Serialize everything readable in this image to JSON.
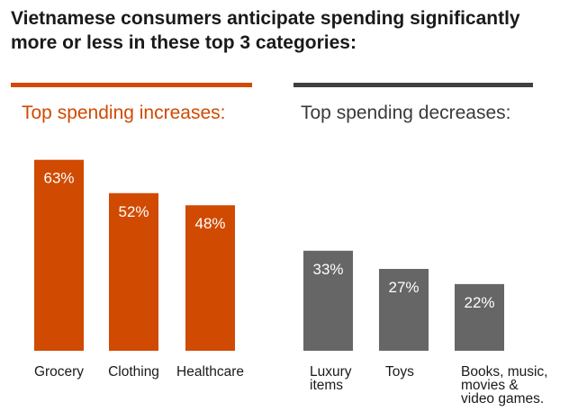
{
  "title": "Vietnamese consumers anticipate spending significantly more or less in these top 3 categories:",
  "colors": {
    "increase": "#d04a02",
    "decrease": "#666666",
    "rule_right": "#404040"
  },
  "chart_data": [
    {
      "type": "bar",
      "title": "Top spending increases:",
      "categories": [
        "Grocery",
        "Clothing",
        "Healthcare"
      ],
      "values": [
        63,
        52,
        48
      ],
      "value_labels": [
        "63%",
        "52%",
        "48%"
      ],
      "unit": "%"
    },
    {
      "type": "bar",
      "title": "Top spending decreases:",
      "categories": [
        "Luxury items",
        "Toys",
        "Books, music, movies & video games."
      ],
      "values": [
        33,
        27,
        22
      ],
      "value_labels": [
        "33%",
        "27%",
        "22%"
      ],
      "unit": "%"
    }
  ]
}
